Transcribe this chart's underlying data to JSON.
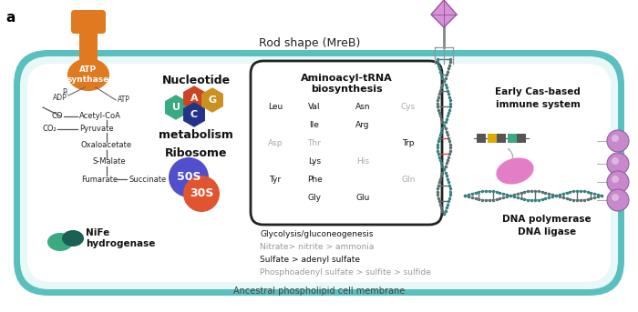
{
  "bg_color": "#ffffff",
  "cell_fill": "#b8e8e4",
  "cell_border": "#5abfbf",
  "cell_inner_fill": "#e8f8f6",
  "title_top": "Rod shape (MreB)",
  "title_bottom": "Ancestral phospholipid cell membrane",
  "label_a": "a",
  "atp_color": "#e07a20",
  "atp_stalk_color": "#c86010",
  "nucleotide_title": "Nucleotide",
  "metabolism_label": "metabolism",
  "ribosome_label": "Ribosome",
  "ribosome_50s_color": "#5050cc",
  "ribosome_30s_color": "#e05530",
  "nife_color1": "#3aaa80",
  "nife_color2": "#1a6055",
  "nucleotide_U_color": "#3aaa80",
  "nucleotide_A_color": "#cc4422",
  "nucleotide_C_color": "#223388",
  "nucleotide_G_color": "#cc9020",
  "aminoacyl_title1": "Aminoacyl-tRNA",
  "aminoacyl_title2": "biosynthesis",
  "glycolysis_lines": [
    {
      "text": "Glycolysis/gluconeogenesis",
      "color": "#111111"
    },
    {
      "text": "Nitrate> nitrite > ammonia",
      "color": "#999999"
    },
    {
      "text": "Sulfate > adenyl sulfate",
      "color": "#111111"
    },
    {
      "text": "Phosphoadenyl sulfate > sulfite > sulfide",
      "color": "#999999"
    }
  ],
  "early_cas_title": "Early Cas-based\nimmune system",
  "dna_pol_label": "DNA polymerase\nDNA ligase",
  "pink_color": "#e070c0",
  "dna_gray": "#5a7070",
  "dna_teal": "#3a8080",
  "dna_red": "#e04040",
  "sphere_color": "#c888cc",
  "phage_color": "#d080cc",
  "cas_colors": [
    "#555555",
    "#ddaa00",
    "#555555",
    "#3aaa80",
    "#555555"
  ],
  "aa_rows": [
    [
      [
        "Leu",
        "k"
      ],
      [
        "Val",
        "k"
      ],
      [
        "Asn",
        "k"
      ],
      [
        "Cys",
        "g"
      ]
    ],
    [
      [
        "",
        ""
      ],
      [
        "Ile",
        "k"
      ],
      [
        "Arg",
        "k"
      ],
      [
        "",
        ""
      ]
    ],
    [
      [
        "Asp",
        "g"
      ],
      [
        "Thr",
        "g"
      ],
      [
        "",
        ""
      ],
      [
        "Trp",
        "k"
      ]
    ],
    [
      [
        "",
        ""
      ],
      [
        "Lys",
        "k"
      ],
      [
        "His",
        "g"
      ],
      [
        "",
        ""
      ]
    ],
    [
      [
        "Tyr",
        "k"
      ],
      [
        "Phe",
        "k"
      ],
      [
        "",
        ""
      ],
      [
        "Gln",
        "g"
      ]
    ],
    [
      [
        "",
        ""
      ],
      [
        "Gly",
        "k"
      ],
      [
        "Glu",
        "k"
      ],
      [
        "",
        ""
      ]
    ]
  ]
}
